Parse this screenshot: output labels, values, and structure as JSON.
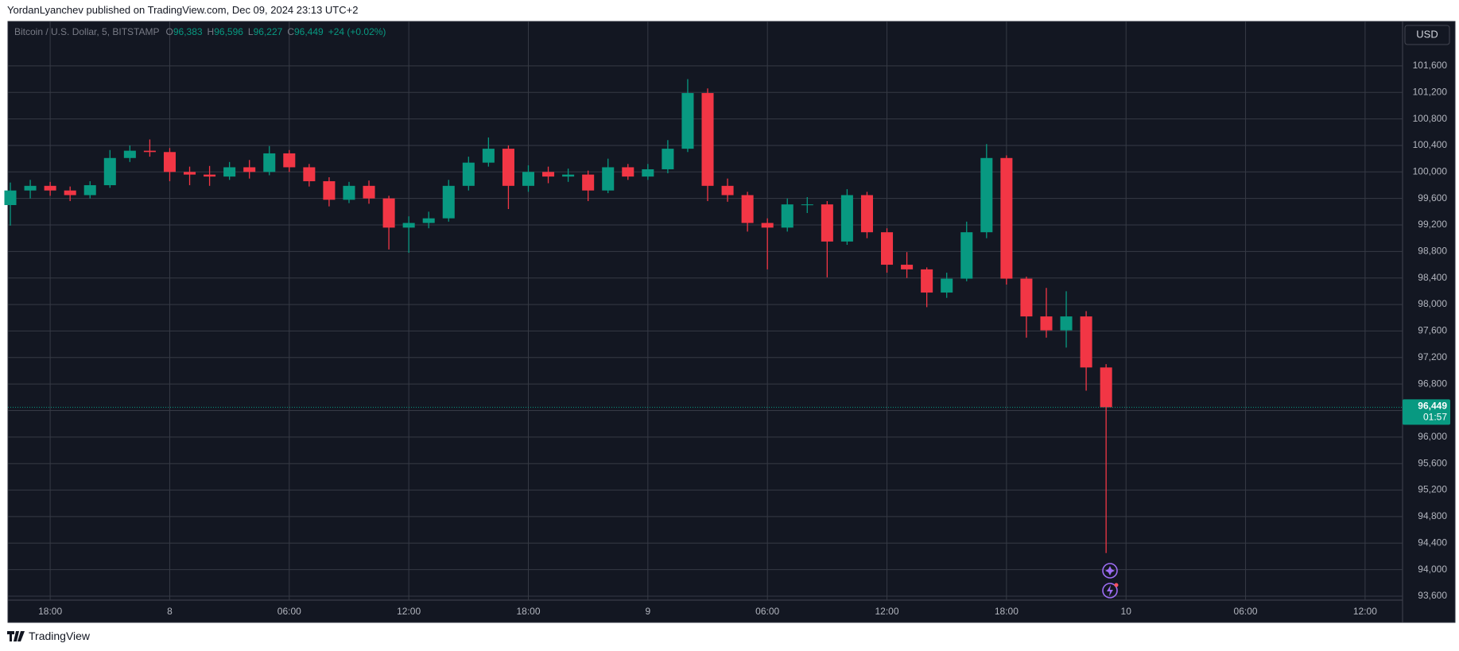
{
  "published": "YordanLyanchev published on TradingView.com, Dec 09, 2024 23:13 UTC+2",
  "brand": "TradingView",
  "currency": "USD",
  "header": {
    "symbol": "Bitcoin / U.S. Dollar, 5, BITSTAMP",
    "ohlc": [
      {
        "key": "O",
        "value": "96,383"
      },
      {
        "key": "H",
        "value": "96,596"
      },
      {
        "key": "L",
        "value": "96,227"
      },
      {
        "key": "C",
        "value": "96,449"
      }
    ],
    "change": "+24 (+0.02%)"
  },
  "chart_data": {
    "type": "candlestick",
    "up_color": "#089981",
    "down_color": "#f23645",
    "grid": true,
    "x": [
      16,
      17,
      18,
      19,
      20,
      21,
      22,
      23,
      24,
      25,
      26,
      27,
      28,
      29,
      30,
      31,
      32,
      33,
      34,
      35,
      36,
      37,
      38,
      39,
      40,
      41,
      42,
      43,
      44,
      45,
      46,
      47,
      48,
      49,
      50,
      51,
      52,
      53,
      54,
      55,
      56,
      57,
      58,
      59,
      60,
      61,
      62,
      63,
      64,
      65,
      66,
      67,
      68,
      69,
      70,
      71
    ],
    "open": [
      99500,
      99720,
      99790,
      99720,
      99650,
      99800,
      100210,
      100320,
      100300,
      100000,
      99960,
      99930,
      100070,
      100000,
      100280,
      100070,
      99860,
      99580,
      99790,
      99600,
      99160,
      99230,
      99300,
      99790,
      100140,
      100350,
      99790,
      100000,
      99930,
      99960,
      99720,
      100070,
      99930,
      100040,
      100350,
      101190,
      99790,
      99650,
      99230,
      99160,
      99510,
      99510,
      98950,
      99650,
      99090,
      98600,
      98530,
      98180,
      98390,
      99090,
      100210,
      98390,
      97820,
      97610,
      97820,
      97050
    ],
    "high": [
      99840,
      99880,
      99850,
      99780,
      99860,
      100330,
      100400,
      100490,
      100360,
      100080,
      100090,
      100150,
      100180,
      100390,
      100330,
      100120,
      99920,
      99850,
      99870,
      99640,
      99330,
      99400,
      99880,
      100230,
      100520,
      100400,
      100100,
      100080,
      100050,
      100020,
      100200,
      100120,
      100120,
      100480,
      101400,
      101260,
      99900,
      99700,
      99300,
      99600,
      99620,
      99560,
      99740,
      99700,
      99150,
      98790,
      98560,
      98480,
      99250,
      100420,
      100250,
      98420,
      98250,
      98200,
      97900,
      97100
    ],
    "low": [
      99190,
      99600,
      99640,
      99560,
      99600,
      99760,
      100150,
      100230,
      99860,
      99800,
      99790,
      99880,
      99900,
      99950,
      100000,
      99780,
      99480,
      99530,
      99520,
      98830,
      98780,
      99150,
      99250,
      99720,
      100080,
      99440,
      99700,
      99830,
      99850,
      99560,
      99680,
      99880,
      99880,
      99980,
      100300,
      99560,
      99550,
      99100,
      98530,
      99100,
      99380,
      98410,
      98900,
      99000,
      98480,
      98400,
      97960,
      98100,
      98350,
      99000,
      98300,
      97500,
      97500,
      97350,
      96700,
      94250
    ],
    "close": [
      99720,
      99790,
      99720,
      99650,
      99800,
      100210,
      100320,
      100300,
      100000,
      99960,
      99930,
      100070,
      100000,
      100280,
      100070,
      99860,
      99580,
      99790,
      99600,
      99160,
      99230,
      99300,
      99790,
      100140,
      100350,
      99790,
      100000,
      99930,
      99960,
      99720,
      100070,
      99930,
      100040,
      100350,
      101190,
      99790,
      99650,
      99230,
      99160,
      99510,
      99510,
      98950,
      99650,
      99090,
      98600,
      98530,
      98180,
      98390,
      99090,
      100210,
      98390,
      97820,
      97610,
      97820,
      97050,
      96449
    ],
    "xlim": [
      15.88,
      85.88
    ],
    "xticks": [
      {
        "value": 18,
        "label": "18:00"
      },
      {
        "value": 24,
        "label": "8"
      },
      {
        "value": 30,
        "label": "06:00"
      },
      {
        "value": 36,
        "label": "12:00"
      },
      {
        "value": 42,
        "label": "18:00"
      },
      {
        "value": 48,
        "label": "9"
      },
      {
        "value": 54,
        "label": "06:00"
      },
      {
        "value": 60,
        "label": "12:00"
      },
      {
        "value": 66,
        "label": "18:00"
      },
      {
        "value": 72,
        "label": "10"
      },
      {
        "value": 78,
        "label": "06:00"
      },
      {
        "value": 84,
        "label": "12:00"
      }
    ],
    "ylim": [
      93540,
      102270
    ],
    "yticks": [
      {
        "value": 93600,
        "label": "93,600"
      },
      {
        "value": 94000,
        "label": "94,000"
      },
      {
        "value": 94400,
        "label": "94,400"
      },
      {
        "value": 94800,
        "label": "94,800"
      },
      {
        "value": 95200,
        "label": "95,200"
      },
      {
        "value": 95600,
        "label": "95,600"
      },
      {
        "value": 96000,
        "label": "96,000"
      },
      {
        "value": 96400,
        "label": "96,400"
      },
      {
        "value": 96800,
        "label": "96,800"
      },
      {
        "value": 97200,
        "label": "97,200"
      },
      {
        "value": 97600,
        "label": "97,600"
      },
      {
        "value": 98000,
        "label": "98,000"
      },
      {
        "value": 98400,
        "label": "98,400"
      },
      {
        "value": 98800,
        "label": "98,800"
      },
      {
        "value": 99200,
        "label": "99,200"
      },
      {
        "value": 99600,
        "label": "99,600"
      },
      {
        "value": 100000,
        "label": "100,000"
      },
      {
        "value": 100400,
        "label": "100,400"
      },
      {
        "value": 100800,
        "label": "100,800"
      },
      {
        "value": 101200,
        "label": "101,200"
      },
      {
        "value": 101600,
        "label": "101,600"
      }
    ],
    "last_price": {
      "value": 96449,
      "label": "96,449"
    },
    "countdown": "01:57"
  }
}
